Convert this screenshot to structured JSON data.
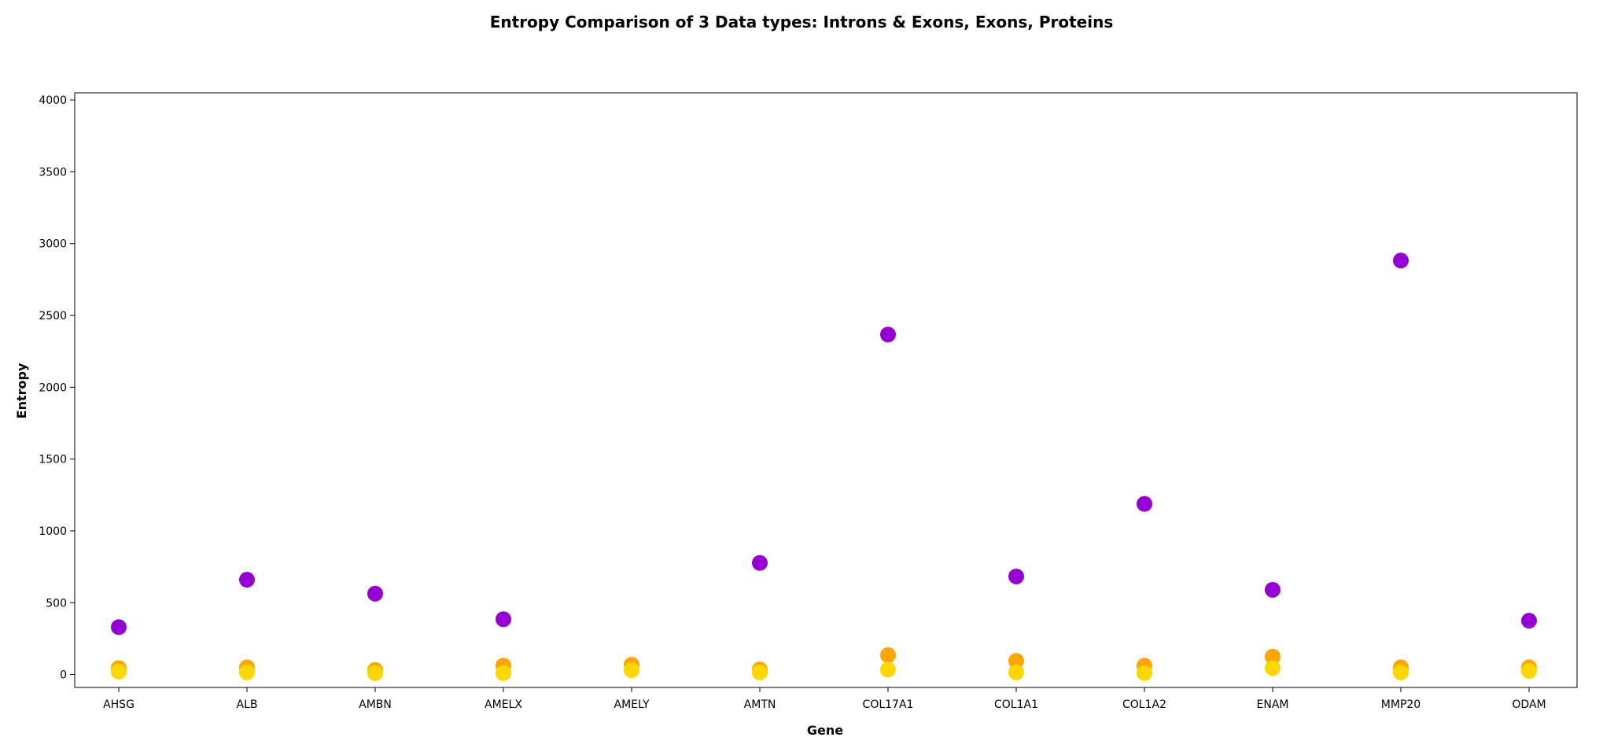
{
  "chart_data": {
    "type": "scatter",
    "title": "Entropy Comparison of 3 Data types: Introns & Exons, Exons, Proteins",
    "xlabel": "Gene",
    "ylabel": "Entropy",
    "categories": [
      "AHSG",
      "ALB",
      "AMBN",
      "AMELX",
      "AMELY",
      "AMTN",
      "COL17A1",
      "COL1A1",
      "COL1A2",
      "ENAM",
      "MMP20",
      "ODAM"
    ],
    "ylim": [
      -90,
      4050
    ],
    "yticks": [
      0,
      500,
      1000,
      1500,
      2000,
      2500,
      3000,
      3500,
      4000
    ],
    "grid": false,
    "series": [
      {
        "color": "#9400d3",
        "values": [
          330,
          660,
          563,
          385,
          null,
          777,
          2367,
          683,
          1188,
          590,
          2882,
          375
        ]
      },
      {
        "color": "#ffa500",
        "values": [
          45,
          50,
          32,
          62,
          68,
          35,
          135,
          95,
          62,
          125,
          50,
          50
        ]
      },
      {
        "color": "#ffd700",
        "values": [
          20,
          15,
          10,
          10,
          30,
          15,
          35,
          15,
          10,
          45,
          15,
          25
        ]
      }
    ]
  }
}
